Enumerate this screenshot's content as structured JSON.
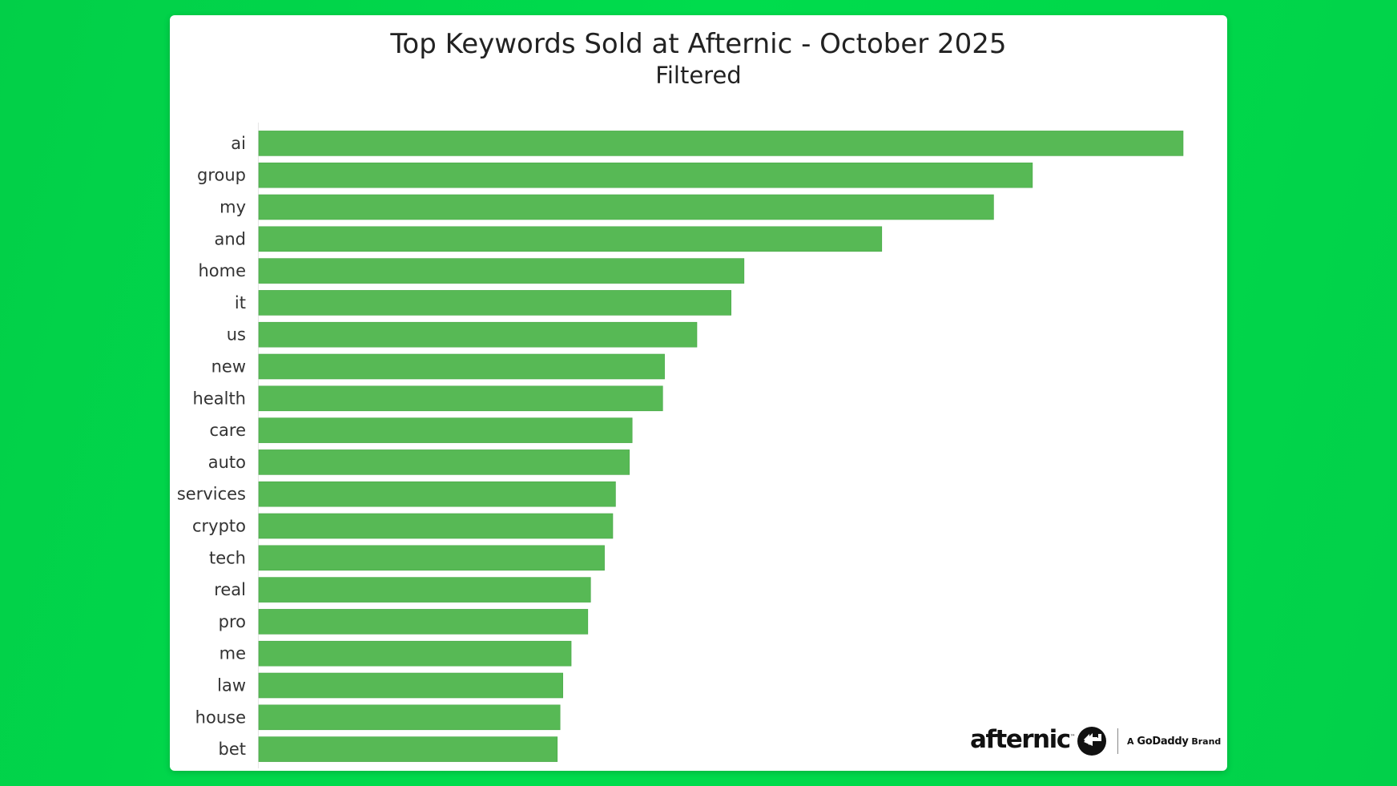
{
  "chart_data": {
    "type": "bar",
    "orientation": "horizontal",
    "title": "Top Keywords Sold at Afternic - October 2025",
    "subtitle": "Filtered",
    "categories": [
      "ai",
      "group",
      "my",
      "and",
      "home",
      "it",
      "us",
      "new",
      "health",
      "care",
      "auto",
      "services",
      "crypto",
      "tech",
      "real",
      "pro",
      "me",
      "law",
      "house",
      "bet"
    ],
    "values": [
      100,
      83.7,
      79.5,
      67.4,
      52.5,
      51.1,
      47.4,
      43.9,
      43.7,
      40.4,
      40.1,
      38.6,
      38.3,
      37.4,
      35.9,
      35.6,
      33.8,
      32.9,
      32.6,
      32.3
    ],
    "xlim": [
      0,
      100
    ],
    "bar_color": "#57b955",
    "grid": false,
    "legend": "none"
  },
  "branding": {
    "logo_text": "afternic",
    "logo_tm": "™",
    "tagline_prefix": "A",
    "tagline_brand": "GoDaddy",
    "tagline_suffix": "Brand",
    "logo_icon": "afternic-arrows-icon"
  },
  "colors": {
    "background": "#00d84a",
    "card": "#ffffff",
    "bar": "#57b955"
  }
}
